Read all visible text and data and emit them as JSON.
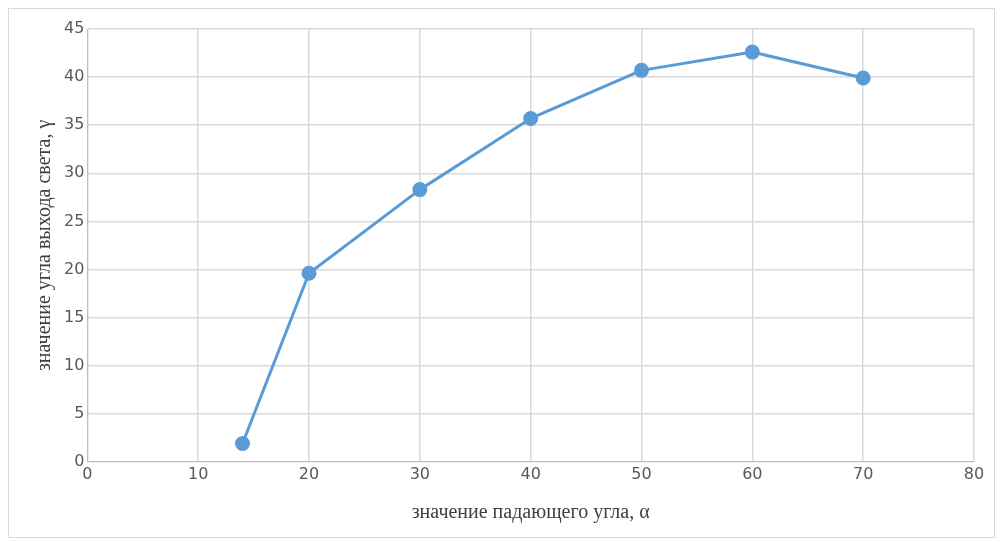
{
  "chart_data": {
    "type": "line",
    "xlabel": "значение падающего угла, α",
    "ylabel": "значение угла выхода света, γ",
    "x": [
      14,
      20,
      30,
      40,
      50,
      60,
      70
    ],
    "series": [
      {
        "color": "#5b9bd5",
        "values": [
          1.9,
          19.6,
          28.3,
          35.7,
          40.7,
          42.6,
          39.9
        ]
      }
    ],
    "xlim": [
      0,
      80
    ],
    "xticks": [
      0,
      10,
      20,
      30,
      40,
      50,
      60,
      70,
      80
    ],
    "ylim": [
      0,
      45
    ],
    "yticks": [
      0,
      5,
      10,
      15,
      20,
      25,
      30,
      35,
      40,
      45
    ],
    "grid": true,
    "legend": false,
    "marker": "circle",
    "line_style": "solid"
  }
}
